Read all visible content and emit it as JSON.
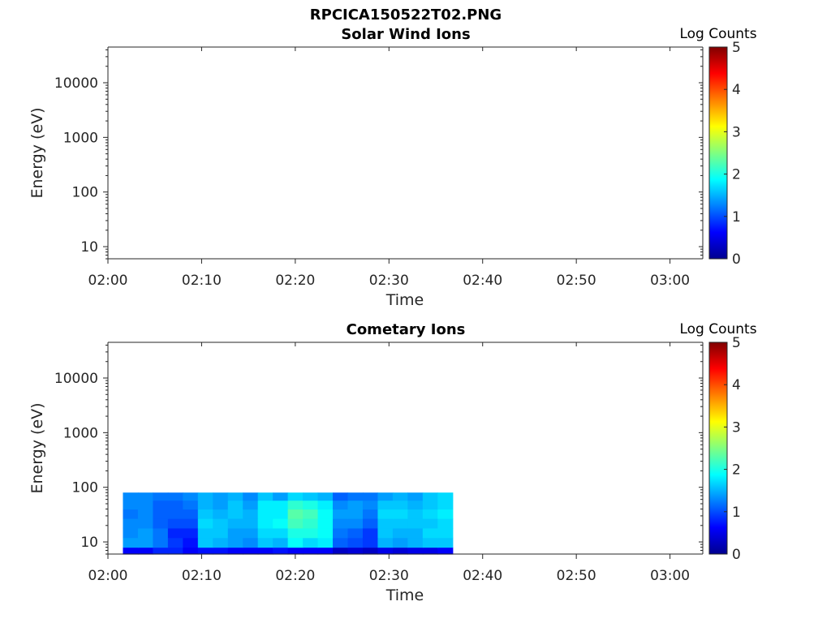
{
  "figure_title": "RPCICA150522T02.PNG",
  "colormap": [
    "#00008f",
    "#0000ff",
    "#0080ff",
    "#00ffff",
    "#80ff80",
    "#ffff00",
    "#ff8000",
    "#ff0000",
    "#800000"
  ],
  "chart_data": [
    {
      "type": "heatmap",
      "title": "Solar Wind Ions",
      "xlabel": "Time",
      "ylabel": "Energy (eV)",
      "xticks": [
        "02:00",
        "02:10",
        "02:20",
        "02:30",
        "02:40",
        "02:50",
        "03:00"
      ],
      "xlim_minutes": [
        0,
        63.5
      ],
      "yscale": "log",
      "ylim": [
        6,
        45000
      ],
      "yticks": [
        {
          "value": 10,
          "label": "10"
        },
        {
          "value": 100,
          "label": "100"
        },
        {
          "value": 1000,
          "label": "1000"
        },
        {
          "value": 10000,
          "label": "10000"
        }
      ],
      "colorbar": {
        "label": "Log Counts",
        "min": 0,
        "max": 5,
        "ticks": [
          "0",
          "1",
          "2",
          "3",
          "4",
          "5"
        ]
      },
      "cells": []
    },
    {
      "type": "heatmap",
      "title": "Cometary Ions",
      "xlabel": "Time",
      "ylabel": "Energy (eV)",
      "xticks": [
        "02:00",
        "02:10",
        "02:20",
        "02:30",
        "02:40",
        "02:50",
        "03:00"
      ],
      "xlim_minutes": [
        0,
        63.5
      ],
      "yscale": "log",
      "ylim": [
        6,
        45000
      ],
      "yticks": [
        {
          "value": 10,
          "label": "10"
        },
        {
          "value": 100,
          "label": "100"
        },
        {
          "value": 1000,
          "label": "1000"
        },
        {
          "value": 10000,
          "label": "10000"
        }
      ],
      "colorbar": {
        "label": "Log Counts",
        "min": 0,
        "max": 5,
        "ticks": [
          "0",
          "1",
          "2",
          "3",
          "4",
          "5"
        ]
      },
      "time_bins_minutes": [
        1.6,
        3.2,
        4.8,
        6.4,
        8.0,
        9.6,
        11.2,
        12.8,
        14.4,
        16.0,
        17.6,
        19.2,
        20.8,
        22.4,
        24.0,
        25.6,
        27.2,
        28.8,
        30.4,
        32.0,
        33.6,
        35.2,
        36.8
      ],
      "energy_bins_eV": [
        6,
        8,
        12,
        18,
        27,
        40,
        58,
        80
      ],
      "log_counts": [
        [
          0.6,
          0.6,
          0.8,
          0.8,
          0.6,
          0.7,
          0.7,
          0.6,
          0.6,
          0.6,
          0.7,
          0.6,
          0.6,
          0.6,
          0.3,
          0.4,
          0.3,
          0.5,
          0.4,
          0.5,
          0.5,
          0.6
        ],
        [
          1.4,
          1.4,
          1.2,
          0.9,
          0.7,
          1.6,
          1.5,
          1.4,
          1.3,
          1.6,
          1.5,
          1.9,
          1.7,
          1.8,
          1.1,
          1.0,
          0.9,
          1.5,
          1.4,
          1.5,
          1.6,
          1.6
        ],
        [
          1.3,
          1.4,
          1.2,
          0.8,
          0.8,
          1.6,
          1.6,
          1.4,
          1.4,
          1.7,
          1.7,
          2.0,
          2.0,
          1.9,
          1.2,
          1.1,
          0.9,
          1.6,
          1.5,
          1.5,
          1.7,
          1.7
        ],
        [
          1.3,
          1.3,
          1.1,
          1.0,
          1.0,
          1.7,
          1.6,
          1.5,
          1.5,
          1.8,
          1.9,
          2.2,
          2.1,
          1.9,
          1.3,
          1.3,
          1.1,
          1.6,
          1.6,
          1.6,
          1.6,
          1.7
        ],
        [
          1.2,
          1.3,
          1.1,
          1.1,
          1.1,
          1.6,
          1.5,
          1.6,
          1.5,
          1.8,
          1.8,
          2.3,
          2.2,
          1.9,
          1.4,
          1.4,
          1.2,
          1.7,
          1.7,
          1.6,
          1.7,
          1.8
        ],
        [
          1.3,
          1.3,
          1.1,
          1.1,
          1.2,
          1.5,
          1.4,
          1.6,
          1.4,
          1.8,
          1.8,
          2.1,
          2.0,
          1.8,
          1.3,
          1.4,
          1.3,
          1.6,
          1.6,
          1.5,
          1.6,
          1.7
        ],
        [
          1.3,
          1.3,
          1.2,
          1.2,
          1.3,
          1.5,
          1.4,
          1.5,
          1.3,
          1.6,
          1.4,
          1.7,
          1.6,
          1.5,
          1.1,
          1.2,
          1.2,
          1.4,
          1.5,
          1.4,
          1.6,
          1.7
        ]
      ]
    }
  ]
}
